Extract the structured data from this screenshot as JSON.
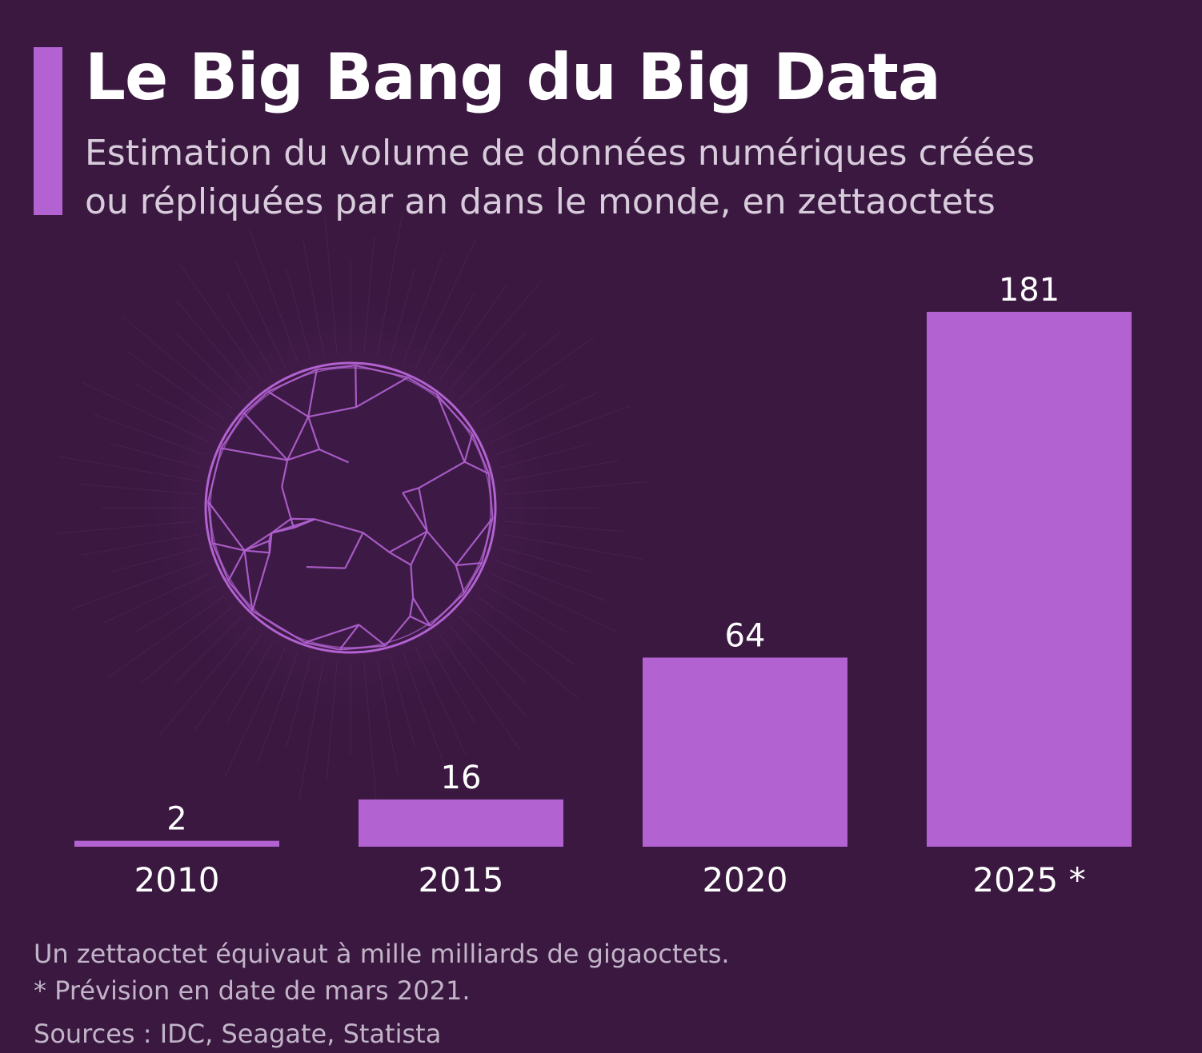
{
  "header": {
    "title": "Le Big Bang du Big Data",
    "subtitle_lines": [
      "Estimation du volume de données numériques créées",
      "ou répliquées par an dans le monde, en zettaoctets"
    ]
  },
  "chart_data": {
    "type": "bar",
    "title": "Le Big Bang du Big Data",
    "subtitle": "Estimation du volume de données numériques créées ou répliquées par an dans le monde, en zettaoctets",
    "categories": [
      "2010",
      "2015",
      "2020",
      "2025 *"
    ],
    "values": [
      2,
      16,
      64,
      181
    ],
    "xlabel": "",
    "ylabel": "",
    "ylim": [
      0,
      181
    ],
    "grid": false,
    "legend": "none",
    "bar_color": "#b262d1",
    "background_color": "#3a1840"
  },
  "illustration": {
    "icon": "wireframe-globe-icon",
    "color": "#b262d1"
  },
  "footer": {
    "note": "Un zettaoctet équivaut à mille milliards de gigaoctets.",
    "forecast_note": "* Prévision en date de mars 2021.",
    "sources": "Sources : IDC, Seagate, Statista"
  }
}
